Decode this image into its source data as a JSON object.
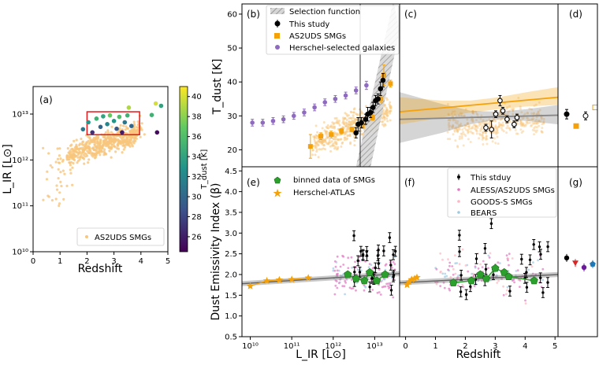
{
  "chart_data": [
    {
      "panel": "a",
      "type": "scatter",
      "panel_label": "(a)",
      "xlabel": "Redshift",
      "ylabel": "L_IR [L⊙]",
      "xlim": [
        0,
        5
      ],
      "ylim_log10": [
        10,
        13.6
      ],
      "xticks": [
        "0",
        "1",
        "2",
        "3",
        "4",
        "5"
      ],
      "yticks": [
        "10¹⁰",
        "10¹¹",
        "10¹²",
        "10¹³"
      ],
      "legend": [
        "AS2UDS SMGs"
      ],
      "colorbar": {
        "label": "T_dust [K]",
        "min": 24.5,
        "max": 41,
        "ticks": [
          "26",
          "28",
          "30",
          "32",
          "34",
          "36",
          "38",
          "40"
        ]
      },
      "selection_box": {
        "x": [
          2.0,
          3.95
        ],
        "log_y": [
          12.55,
          13.05
        ]
      },
      "colored_points": [
        {
          "z": 1.85,
          "logL": 12.67,
          "t": 31
        },
        {
          "z": 2.05,
          "logL": 12.82,
          "t": 33
        },
        {
          "z": 2.2,
          "logL": 12.6,
          "t": 27
        },
        {
          "z": 2.35,
          "logL": 12.9,
          "t": 35
        },
        {
          "z": 2.5,
          "logL": 12.72,
          "t": 30
        },
        {
          "z": 2.6,
          "logL": 12.95,
          "t": 34
        },
        {
          "z": 2.75,
          "logL": 12.78,
          "t": 32
        },
        {
          "z": 2.85,
          "logL": 12.97,
          "t": 37
        },
        {
          "z": 3.0,
          "logL": 12.85,
          "t": 33
        },
        {
          "z": 3.1,
          "logL": 12.68,
          "t": 29
        },
        {
          "z": 3.2,
          "logL": 12.94,
          "t": 36
        },
        {
          "z": 3.3,
          "logL": 12.6,
          "t": 26
        },
        {
          "z": 3.4,
          "logL": 12.82,
          "t": 31
        },
        {
          "z": 3.5,
          "logL": 12.97,
          "t": 35
        },
        {
          "z": 3.65,
          "logL": 12.74,
          "t": 30
        },
        {
          "z": 3.55,
          "logL": 13.14,
          "t": 39
        },
        {
          "z": 4.6,
          "logL": 12.6,
          "t": 25
        },
        {
          "z": 4.4,
          "logL": 12.98,
          "t": 35
        },
        {
          "z": 4.55,
          "logL": 13.23,
          "t": 40
        },
        {
          "z": 4.75,
          "logL": 13.18,
          "t": 34
        }
      ]
    },
    {
      "panel": "b",
      "type": "scatter",
      "panel_label": "(b)",
      "xlabel": "",
      "ylabel": "T_dust [K]",
      "xlim_log10": [
        9.8,
        13.6
      ],
      "ylim": [
        15,
        63
      ],
      "yticks": [
        "20",
        "30",
        "40",
        "50",
        "60"
      ],
      "legend": [
        "Selection function",
        "This study",
        "AS2UDS SMGs",
        "Herschel-selected galaxies"
      ],
      "vline_logL": 12.65,
      "this_study": [
        {
          "logL": 12.55,
          "t": 25,
          "e": 1.5
        },
        {
          "logL": 12.6,
          "t": 27.5,
          "e": 2
        },
        {
          "logL": 12.68,
          "t": 28,
          "e": 1.5
        },
        {
          "logL": 12.78,
          "t": 29,
          "e": 1.5
        },
        {
          "logL": 12.83,
          "t": 30.5,
          "e": 2
        },
        {
          "logL": 12.9,
          "t": 31,
          "e": 1.5
        },
        {
          "logL": 12.96,
          "t": 32.5,
          "e": 1.5
        },
        {
          "logL": 13.02,
          "t": 34.5,
          "e": 1.5
        },
        {
          "logL": 13.08,
          "t": 35,
          "e": 1.5
        },
        {
          "logL": 13.14,
          "t": 38,
          "e": 2
        },
        {
          "logL": 13.2,
          "t": 40.5,
          "e": 2
        }
      ],
      "as2uds_binned": [
        {
          "logL": 11.45,
          "t": 21,
          "e": 3.5
        },
        {
          "logL": 11.7,
          "t": 24,
          "e": 1
        },
        {
          "logL": 11.95,
          "t": 24.5,
          "e": 1
        },
        {
          "logL": 12.2,
          "t": 25.5,
          "e": 0.8
        },
        {
          "logL": 12.45,
          "t": 26,
          "e": 0.7
        },
        {
          "logL": 12.7,
          "t": 27,
          "e": 0.7
        },
        {
          "logL": 12.95,
          "t": 29.5,
          "e": 0.8
        },
        {
          "logL": 13.15,
          "t": 35,
          "e": 1
        },
        {
          "logL": 13.22,
          "t": 42,
          "e": 3
        },
        {
          "logL": 13.38,
          "t": 39.5,
          "e": 1
        }
      ],
      "herschel": [
        {
          "logL": 10.05,
          "t": 28,
          "e": 1
        },
        {
          "logL": 10.3,
          "t": 28,
          "e": 1
        },
        {
          "logL": 10.55,
          "t": 28.5,
          "e": 1
        },
        {
          "logL": 10.8,
          "t": 29,
          "e": 1
        },
        {
          "logL": 11.05,
          "t": 30,
          "e": 1
        },
        {
          "logL": 11.3,
          "t": 31,
          "e": 1
        },
        {
          "logL": 11.55,
          "t": 32.5,
          "e": 1
        },
        {
          "logL": 11.8,
          "t": 34,
          "e": 1
        },
        {
          "logL": 12.05,
          "t": 35,
          "e": 1
        },
        {
          "logL": 12.3,
          "t": 36,
          "e": 1
        },
        {
          "logL": 12.55,
          "t": 37.5,
          "e": 1
        },
        {
          "logL": 12.8,
          "t": 39,
          "e": 1.2
        }
      ]
    },
    {
      "panel": "c",
      "type": "scatter",
      "panel_label": "(c)",
      "xlim": [
        -0.5,
        5.1
      ],
      "ylim": [
        15,
        63
      ],
      "points": [
        {
          "z": 2.55,
          "t": 26.5,
          "e": 1,
          "c": "#000"
        },
        {
          "z": 2.75,
          "t": 26,
          "e": 2.5,
          "c": "#000"
        },
        {
          "z": 2.9,
          "t": 30.5,
          "e": 1,
          "c": "#000"
        },
        {
          "z": 3.05,
          "t": 34.5,
          "e": 1.5,
          "c": "#000"
        },
        {
          "z": 3.15,
          "t": 31.5,
          "e": 1,
          "c": "#000"
        },
        {
          "z": 3.3,
          "t": 29,
          "e": 1,
          "c": "#000"
        },
        {
          "z": 3.55,
          "t": 27.5,
          "e": 1,
          "c": "#000"
        },
        {
          "z": 3.65,
          "t": 29.5,
          "e": 1,
          "c": "#000"
        }
      ]
    },
    {
      "panel": "d",
      "type": "scatter",
      "panel_label": "(d)",
      "points": [
        {
          "i": 0,
          "t": 30.5,
          "c": "#000000",
          "open": false
        },
        {
          "i": 1,
          "t": 27,
          "c": "#f5a20a",
          "open": false
        },
        {
          "i": 2,
          "t": 30,
          "c": "#000000",
          "open": true
        },
        {
          "i": 3,
          "t": 32.5,
          "c": "#f5a20a",
          "open": true
        }
      ]
    },
    {
      "panel": "e",
      "type": "scatter",
      "panel_label": "(e)",
      "xlabel": "L_IR [L⊙]",
      "ylabel": "Dust Emissivity Index (β)",
      "xlim_log10": [
        9.8,
        13.6
      ],
      "ylim": [
        0.5,
        4.6
      ],
      "xticks": [
        "10¹⁰",
        "10¹¹",
        "10¹²",
        "10¹³"
      ],
      "yticks": [
        "0.5",
        "1.0",
        "1.5",
        "2.0",
        "2.5",
        "3.0",
        "3.5",
        "4.0",
        "4.5"
      ],
      "legend": [
        "binned data of SMGs",
        "Herschel-ATLAS"
      ],
      "binned": [
        {
          "logL": 12.35,
          "b": 2.0
        },
        {
          "logL": 12.55,
          "b": 1.9
        },
        {
          "logL": 12.75,
          "b": 1.85
        },
        {
          "logL": 12.88,
          "b": 2.05
        },
        {
          "logL": 13.05,
          "b": 1.85
        },
        {
          "logL": 13.25,
          "b": 2.0
        }
      ],
      "atlas": [
        {
          "logL": 10.0,
          "b": 1.72
        },
        {
          "logL": 10.4,
          "b": 1.85
        },
        {
          "logL": 10.7,
          "b": 1.87
        },
        {
          "logL": 11.0,
          "b": 1.88
        },
        {
          "logL": 11.4,
          "b": 1.92
        }
      ]
    },
    {
      "panel": "f",
      "type": "scatter",
      "panel_label": "(f)",
      "xlabel": "Redshift",
      "xlim": [
        -0.2,
        5.1
      ],
      "ylim": [
        0.5,
        4.6
      ],
      "xticks": [
        "0",
        "1",
        "2",
        "3",
        "4",
        "5"
      ],
      "legend": [
        "This stduy",
        "ALESS/AS2UDS SMGs",
        "GOODS-S SMGs",
        "BEARS"
      ],
      "binned": [
        {
          "z": 1.6,
          "b": 1.8
        },
        {
          "z": 2.2,
          "b": 1.85
        },
        {
          "z": 2.5,
          "b": 2.0
        },
        {
          "z": 2.7,
          "b": 1.9
        },
        {
          "z": 3.0,
          "b": 2.15
        },
        {
          "z": 3.3,
          "b": 2.05
        },
        {
          "z": 3.45,
          "b": 1.95
        },
        {
          "z": 4.3,
          "b": 1.85
        }
      ],
      "atlas": [
        {
          "z": 0.05,
          "b": 1.75
        },
        {
          "z": 0.12,
          "b": 1.82
        },
        {
          "z": 0.2,
          "b": 1.88
        },
        {
          "z": 0.3,
          "b": 1.9
        },
        {
          "z": 0.38,
          "b": 1.93
        }
      ]
    },
    {
      "panel": "g",
      "type": "scatter",
      "panel_label": "(g)",
      "points": [
        {
          "i": 0,
          "b": 2.4,
          "c": "#000000",
          "m": "circle"
        },
        {
          "i": 1,
          "b": 2.28,
          "c": "#d62728",
          "m": "triangle"
        },
        {
          "i": 2,
          "b": 2.17,
          "c": "#6a1b9a",
          "m": "circle"
        },
        {
          "i": 3,
          "b": 2.25,
          "c": "#1f77b4",
          "m": "pentagon"
        }
      ]
    }
  ],
  "colors": {
    "orange": "#f5a20a",
    "light_orange": "#f8c67c",
    "purple": "#8e6bbf",
    "green": "#2ca02c",
    "grey": "#888888",
    "pink": "#e377c2",
    "blue_dot": "#9ecae1",
    "red_box": "#e41a1c"
  }
}
